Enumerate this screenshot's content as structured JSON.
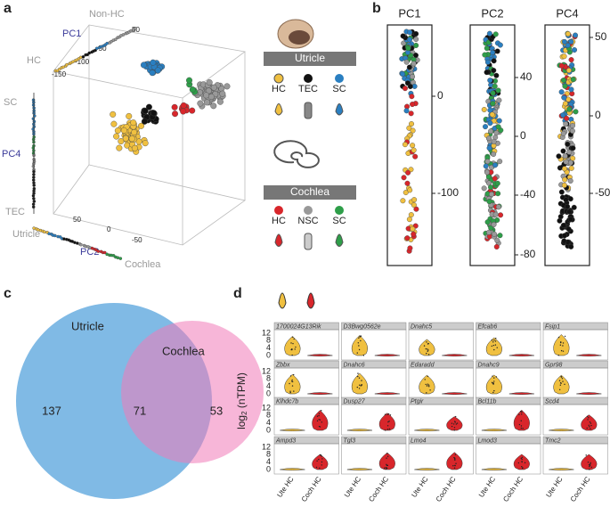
{
  "panel_a": {
    "letter": "a",
    "pc1_axis": {
      "name": "PC1",
      "end_high": "Non-HC",
      "end_low": "HC",
      "ticks": [
        "50",
        "-50",
        "-100",
        "-150"
      ]
    },
    "pc4_axis": {
      "name": "PC4",
      "end_high": "SC",
      "end_low": "TEC"
    },
    "pc2_axis": {
      "name": "PC2",
      "end_high": "Utricle",
      "end_low": "Cochlea",
      "ticks": [
        "50",
        "0",
        "-50"
      ]
    }
  },
  "legend": {
    "utricle": {
      "title": "Utricle",
      "cells": [
        "HC",
        "TEC",
        "SC"
      ]
    },
    "cochlea": {
      "title": "Cochlea",
      "cells": [
        "HC",
        "NSC",
        "SC"
      ]
    }
  },
  "panel_b": {
    "letter": "b",
    "plots": [
      {
        "title": "PC1",
        "ticks": [
          "0",
          "-100"
        ]
      },
      {
        "title": "PC2",
        "ticks": [
          "40",
          "0",
          "-40",
          "-80"
        ]
      },
      {
        "title": "PC4",
        "ticks": [
          "50",
          "0",
          "-50"
        ]
      }
    ]
  },
  "panel_c": {
    "letter": "c",
    "sets": [
      "Utricle",
      "Cochlea"
    ],
    "counts": [
      "137",
      "71",
      "53"
    ]
  },
  "panel_d": {
    "letter": "d",
    "y_label": {
      "base": "log",
      "sub": "2",
      "rest": " (nTPM)"
    },
    "y_ticks": [
      "12",
      "8",
      "4",
      "0"
    ],
    "x_labels": [
      "Ute HC",
      "Coch HC"
    ],
    "genes": [
      "1700024G13Rik",
      "D3Bwg0562e",
      "Dnahc5",
      "Efcab6",
      "Fsip1",
      "Zbbx",
      "Dnahc6",
      "Edaradd",
      "Dnahc9",
      "Gpr98",
      "Klhdc7b",
      "Dusp27",
      "Ptgir",
      "Bcl11b",
      "Scd4",
      "Ampd3",
      "Tgl3",
      "Lmo4",
      "Lmod3",
      "Tmc2"
    ]
  }
}
